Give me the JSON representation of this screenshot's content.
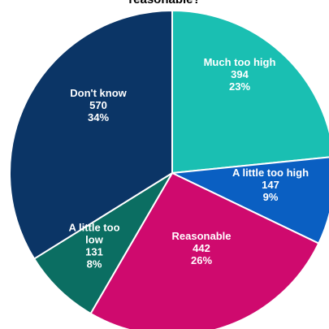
{
  "chart_data": {
    "type": "pie",
    "title": "reasonable?",
    "slices": [
      {
        "label": "Much too high",
        "value": 394,
        "percent": "23%",
        "color": "#1abfb2"
      },
      {
        "label": "A little too high",
        "value": 147,
        "percent": "9%",
        "color": "#0a5fc2"
      },
      {
        "label": "Reasonable",
        "value": 442,
        "percent": "26%",
        "color": "#cf0a6e"
      },
      {
        "label": "A little too low",
        "value": 131,
        "percent": "8%",
        "color": "#0b6e62"
      },
      {
        "label": "Don't know",
        "value": 570,
        "percent": "34%",
        "color": "#0b3566"
      }
    ],
    "start_angle_deg": 0,
    "direction": "clockwise",
    "legend": "none"
  }
}
